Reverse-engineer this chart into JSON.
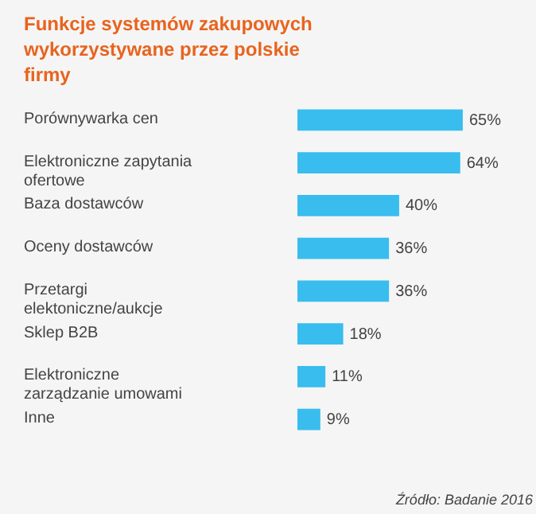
{
  "chart_data": {
    "type": "bar",
    "orientation": "horizontal",
    "title": "Funkcje systemów zakupowych wykorzystywane przez polskie firmy",
    "categories": [
      "Porównywarka cen",
      "Elektroniczne zapytania ofertowe",
      "Baza dostawców",
      "Oceny dostawców",
      "Przetargi elektoniczne/aukcje",
      "Sklep B2B",
      "Elektroniczne zarządzanie umowami",
      "Inne"
    ],
    "values": [
      65,
      64,
      40,
      36,
      36,
      18,
      11,
      9
    ],
    "value_labels": [
      "65%",
      "64%",
      "40%",
      "36%",
      "36%",
      "18%",
      "11%",
      "9%"
    ],
    "color": "#38bdee",
    "annotations": [
      "Źródło: Badanie 2016"
    ]
  }
}
